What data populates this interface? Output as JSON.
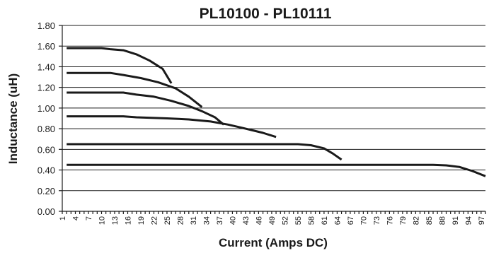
{
  "chart_data": {
    "type": "line",
    "title": "PL10100 - PL10111",
    "xlabel": "Current (Amps DC)",
    "ylabel": "Inductance (uH)",
    "xlim": [
      1,
      98
    ],
    "ylim": [
      0,
      1.8
    ],
    "yticks": [
      "0.00",
      "0.20",
      "0.40",
      "0.60",
      "0.80",
      "1.00",
      "1.20",
      "1.40",
      "1.60",
      "1.80"
    ],
    "xticks": [
      "1",
      "4",
      "7",
      "10",
      "13",
      "16",
      "19",
      "22",
      "25",
      "28",
      "31",
      "34",
      "37",
      "40",
      "43",
      "46",
      "49",
      "52",
      "55",
      "58",
      "61",
      "64",
      "67",
      "70",
      "73",
      "76",
      "79",
      "82",
      "85",
      "88",
      "91",
      "94",
      "97"
    ],
    "grid": true,
    "legend": "none",
    "series": [
      {
        "points": [
          [
            2,
            1.58
          ],
          [
            10,
            1.58
          ],
          [
            12,
            1.57
          ],
          [
            15,
            1.56
          ],
          [
            18,
            1.52
          ],
          [
            21,
            1.46
          ],
          [
            24,
            1.38
          ],
          [
            26,
            1.24
          ]
        ]
      },
      {
        "points": [
          [
            2,
            1.34
          ],
          [
            12,
            1.34
          ],
          [
            15,
            1.32
          ],
          [
            19,
            1.29
          ],
          [
            23,
            1.25
          ],
          [
            27,
            1.19
          ],
          [
            30,
            1.11
          ],
          [
            33,
            1.01
          ]
        ]
      },
      {
        "points": [
          [
            2,
            1.15
          ],
          [
            15,
            1.15
          ],
          [
            18,
            1.13
          ],
          [
            22,
            1.11
          ],
          [
            26,
            1.07
          ],
          [
            30,
            1.02
          ],
          [
            33,
            0.97
          ],
          [
            36,
            0.91
          ],
          [
            38,
            0.84
          ]
        ]
      },
      {
        "points": [
          [
            2,
            0.92
          ],
          [
            15,
            0.92
          ],
          [
            18,
            0.91
          ],
          [
            25,
            0.9
          ],
          [
            30,
            0.89
          ],
          [
            35,
            0.87
          ],
          [
            39,
            0.84
          ],
          [
            42,
            0.81
          ],
          [
            45,
            0.78
          ],
          [
            47,
            0.76
          ],
          [
            50,
            0.72
          ]
        ]
      },
      {
        "points": [
          [
            2,
            0.65
          ],
          [
            55,
            0.65
          ],
          [
            58,
            0.64
          ],
          [
            61,
            0.61
          ],
          [
            63,
            0.56
          ],
          [
            65,
            0.5
          ]
        ]
      },
      {
        "points": [
          [
            2,
            0.45
          ],
          [
            86,
            0.45
          ],
          [
            89,
            0.445
          ],
          [
            92,
            0.43
          ],
          [
            95,
            0.39
          ],
          [
            98,
            0.34
          ]
        ]
      }
    ]
  }
}
